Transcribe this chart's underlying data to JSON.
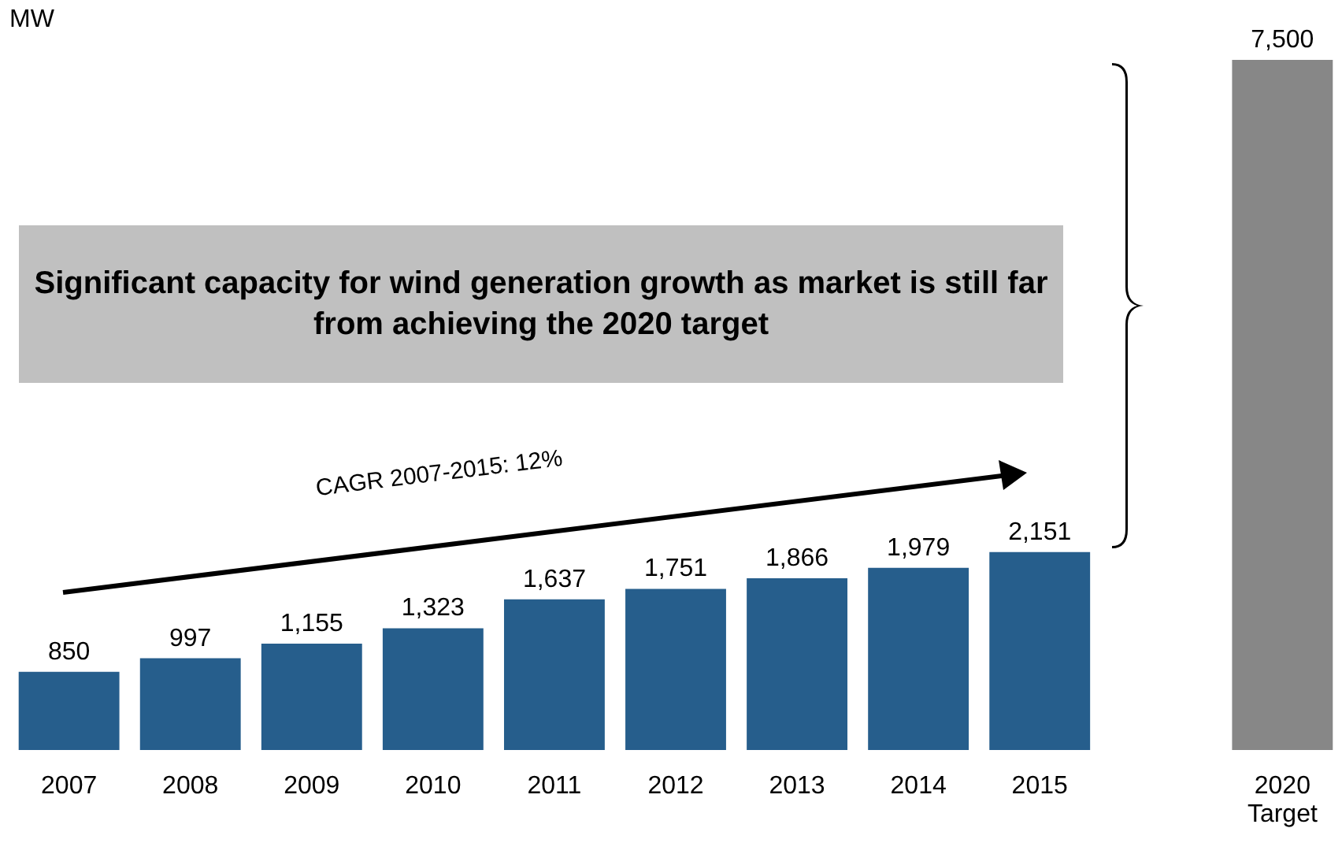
{
  "chart_data": {
    "type": "bar",
    "ylabel": "MW",
    "categories": [
      "2007",
      "2008",
      "2009",
      "2010",
      "2011",
      "2012",
      "2013",
      "2014",
      "2015",
      null,
      "2020 Target"
    ],
    "values": [
      850,
      997,
      1155,
      1323,
      1637,
      1751,
      1866,
      1979,
      2151,
      null,
      7500
    ],
    "colors": [
      "#265e8c",
      "#265e8c",
      "#265e8c",
      "#265e8c",
      "#265e8c",
      "#265e8c",
      "#265e8c",
      "#265e8c",
      "#265e8c",
      "#265e8c",
      "#878787"
    ],
    "value_labels": [
      "850",
      "997",
      "1,155",
      "1,323",
      "1,637",
      "1,751",
      "1,866",
      "1,979",
      "2,151",
      null,
      "7,500"
    ],
    "annotations": [
      "Significant capacity for wind generation growth as market is still far from achieving the 2020 target",
      "CAGR 2007-2015: 12%"
    ]
  }
}
